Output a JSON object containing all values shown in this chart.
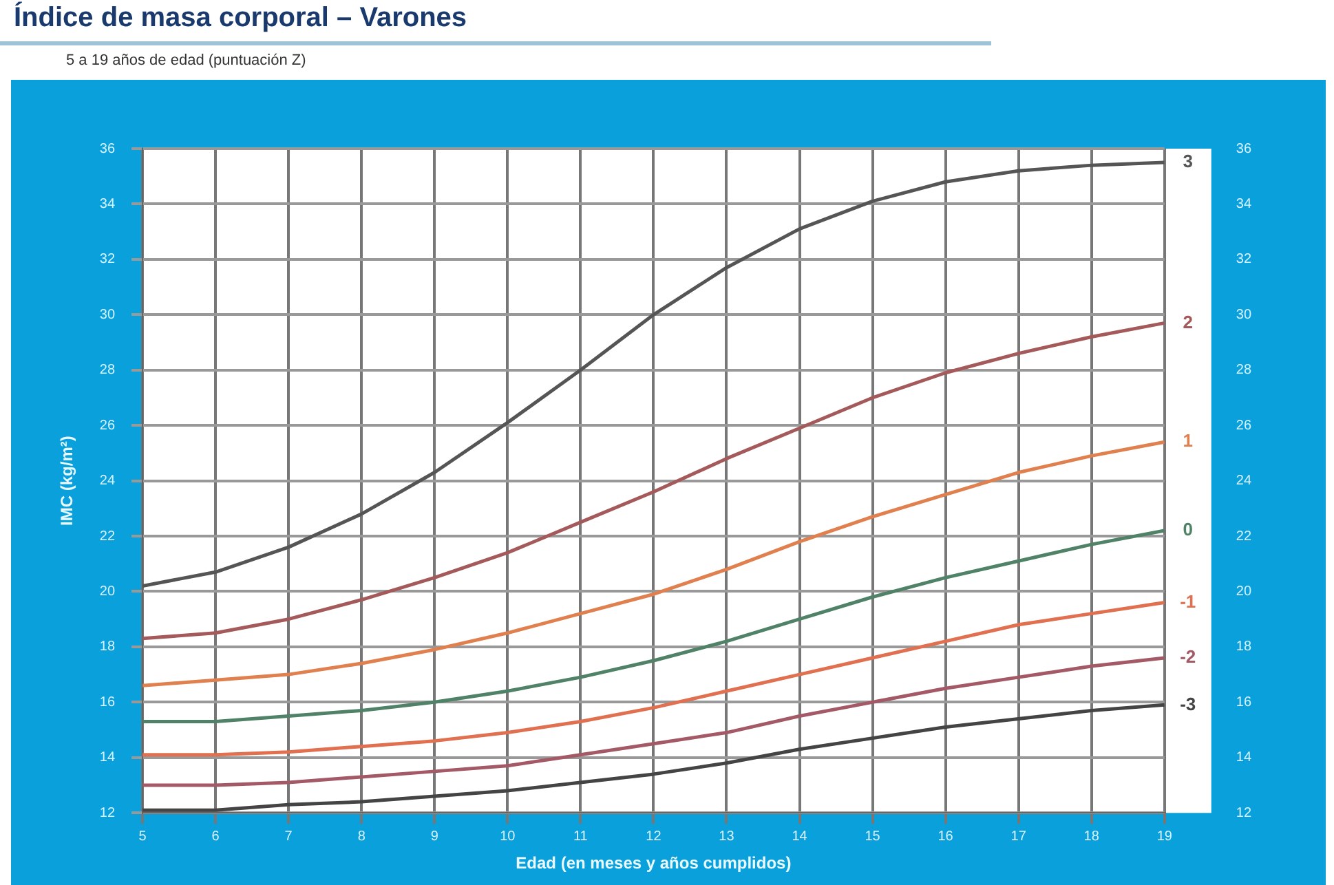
{
  "chart_data": {
    "type": "line",
    "title": "Índice de masa corporal – Varones",
    "subtitle": "5 a 19 años de edad (puntuación Z)",
    "xlabel": "Edad (en meses y años cumplidos)",
    "ylabel": "IMC (kg/m²)",
    "x": [
      5,
      6,
      7,
      8,
      9,
      10,
      11,
      12,
      13,
      14,
      15,
      16,
      17,
      18,
      19
    ],
    "xlim": [
      5,
      19
    ],
    "xticks": [
      5,
      6,
      7,
      8,
      9,
      10,
      11,
      12,
      13,
      14,
      15,
      16,
      17,
      18,
      19
    ],
    "ylim": [
      12,
      36
    ],
    "yticks": [
      12,
      14,
      16,
      18,
      20,
      22,
      24,
      26,
      28,
      30,
      32,
      34,
      36
    ],
    "y2lim": [
      12,
      36
    ],
    "y2ticks": [
      12,
      14,
      16,
      18,
      20,
      22,
      24,
      26,
      28,
      30,
      32,
      34,
      36
    ],
    "grid": true,
    "legend": false,
    "marker": "none",
    "line_style": "solid",
    "series": [
      {
        "name": "3",
        "color": "#555555",
        "values": [
          20.2,
          20.7,
          21.6,
          22.8,
          24.3,
          26.1,
          28.0,
          30.0,
          31.7,
          33.1,
          34.1,
          34.8,
          35.2,
          35.4,
          35.5
        ]
      },
      {
        "name": "2",
        "color": "#a45a5a",
        "values": [
          18.3,
          18.5,
          19.0,
          19.7,
          20.5,
          21.4,
          22.5,
          23.6,
          24.8,
          25.9,
          27.0,
          27.9,
          28.6,
          29.2,
          29.7
        ]
      },
      {
        "name": "1",
        "color": "#e0804f",
        "values": [
          16.6,
          16.8,
          17.0,
          17.4,
          17.9,
          18.5,
          19.2,
          19.9,
          20.8,
          21.8,
          22.7,
          23.5,
          24.3,
          24.9,
          25.4
        ]
      },
      {
        "name": "0",
        "color": "#4f8266",
        "values": [
          15.3,
          15.3,
          15.5,
          15.7,
          16.0,
          16.4,
          16.9,
          17.5,
          18.2,
          19.0,
          19.8,
          20.5,
          21.1,
          21.7,
          22.2
        ]
      },
      {
        "name": "-1",
        "color": "#e0704f",
        "values": [
          14.1,
          14.1,
          14.2,
          14.4,
          14.6,
          14.9,
          15.3,
          15.8,
          16.4,
          17.0,
          17.6,
          18.2,
          18.8,
          19.2,
          19.6
        ]
      },
      {
        "name": "-2",
        "color": "#a45a66",
        "values": [
          13.0,
          13.0,
          13.1,
          13.3,
          13.5,
          13.7,
          14.1,
          14.5,
          14.9,
          15.5,
          16.0,
          16.5,
          16.9,
          17.3,
          17.6
        ]
      },
      {
        "name": "-3",
        "color": "#444444",
        "values": [
          12.1,
          12.1,
          12.3,
          12.4,
          12.6,
          12.8,
          13.1,
          13.4,
          13.8,
          14.3,
          14.7,
          15.1,
          15.4,
          15.7,
          15.9
        ]
      }
    ]
  }
}
